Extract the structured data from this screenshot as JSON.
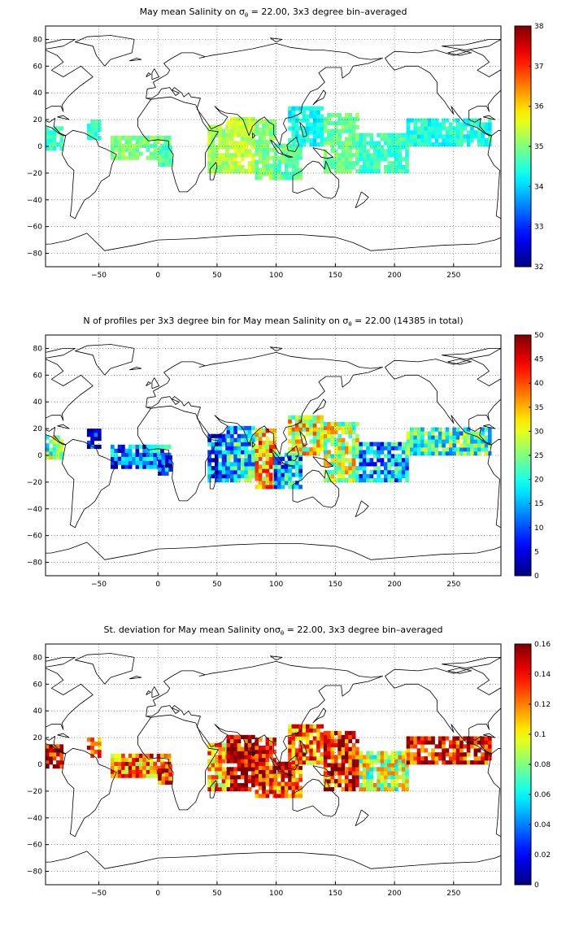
{
  "chart_data": [
    {
      "type": "heatmap",
      "title_pre": "May mean Salinity on ",
      "title_sym": "σ",
      "title_sub": "θ",
      "title_post": " = 22.00, 3x3 degree bin–averaged",
      "xticks": [
        -50,
        0,
        50,
        100,
        150,
        200,
        250
      ],
      "yticks": [
        80,
        60,
        40,
        20,
        0,
        -20,
        -40,
        -60,
        -80
      ],
      "xlim": [
        -95,
        290
      ],
      "ylim": [
        -90,
        90
      ],
      "colorbar": {
        "min": 32,
        "max": 38,
        "ticks": [
          38,
          37,
          36,
          35,
          34,
          33,
          32
        ]
      },
      "regions": [
        {
          "lon": [
            -95,
            -80
          ],
          "lat": [
            -3,
            15
          ],
          "value": 34.6
        },
        {
          "lon": [
            -60,
            -48
          ],
          "lat": [
            5,
            20
          ],
          "value": 34.5
        },
        {
          "lon": [
            -40,
            10
          ],
          "lat": [
            -10,
            8
          ],
          "value": 35.0
        },
        {
          "lon": [
            0,
            12
          ],
          "lat": [
            -15,
            0
          ],
          "value": 34.7
        },
        {
          "lon": [
            42,
            60
          ],
          "lat": [
            -20,
            15
          ],
          "value": 35.2
        },
        {
          "lon": [
            58,
            82
          ],
          "lat": [
            -20,
            22
          ],
          "value": 35.4
        },
        {
          "lon": [
            82,
            98
          ],
          "lat": [
            -25,
            20
          ],
          "value": 35.0
        },
        {
          "lon": [
            98,
            120
          ],
          "lat": [
            -25,
            0
          ],
          "value": 34.8
        },
        {
          "lon": [
            110,
            140
          ],
          "lat": [
            0,
            30
          ],
          "value": 34.3
        },
        {
          "lon": [
            140,
            170
          ],
          "lat": [
            -20,
            25
          ],
          "value": 34.9
        },
        {
          "lon": [
            170,
            210
          ],
          "lat": [
            -20,
            10
          ],
          "value": 34.6
        },
        {
          "lon": [
            210,
            280
          ],
          "lat": [
            0,
            20
          ],
          "value": 34.4
        }
      ]
    },
    {
      "type": "heatmap",
      "title_pre": "N of profiles per 3x3 degree bin for May mean Salinity on ",
      "title_sym": "σ",
      "title_sub": "θ",
      "title_post": " = 22.00 (14385 in total)",
      "xticks": [
        -50,
        0,
        50,
        100,
        150,
        200,
        250
      ],
      "yticks": [
        80,
        60,
        40,
        20,
        0,
        -20,
        -40,
        -60,
        -80
      ],
      "xlim": [
        -95,
        290
      ],
      "ylim": [
        -90,
        90
      ],
      "colorbar": {
        "min": 0,
        "max": 50,
        "ticks": [
          50,
          45,
          40,
          35,
          30,
          25,
          20,
          15,
          10,
          5,
          0
        ]
      },
      "regions": [
        {
          "lon": [
            -95,
            -80
          ],
          "lat": [
            -3,
            15
          ],
          "value": 25
        },
        {
          "lon": [
            -60,
            -48
          ],
          "lat": [
            5,
            20
          ],
          "value": 5
        },
        {
          "lon": [
            -40,
            10
          ],
          "lat": [
            -10,
            8
          ],
          "value": 12
        },
        {
          "lon": [
            0,
            12
          ],
          "lat": [
            -15,
            0
          ],
          "value": 8
        },
        {
          "lon": [
            42,
            60
          ],
          "lat": [
            -20,
            15
          ],
          "value": 10
        },
        {
          "lon": [
            58,
            82
          ],
          "lat": [
            -20,
            22
          ],
          "value": 18
        },
        {
          "lon": [
            82,
            98
          ],
          "lat": [
            -25,
            20
          ],
          "value": 35
        },
        {
          "lon": [
            98,
            120
          ],
          "lat": [
            -25,
            0
          ],
          "value": 15
        },
        {
          "lon": [
            110,
            140
          ],
          "lat": [
            0,
            30
          ],
          "value": 30
        },
        {
          "lon": [
            140,
            170
          ],
          "lat": [
            -20,
            25
          ],
          "value": 28
        },
        {
          "lon": [
            170,
            210
          ],
          "lat": [
            -20,
            10
          ],
          "value": 15
        },
        {
          "lon": [
            210,
            280
          ],
          "lat": [
            0,
            20
          ],
          "value": 22
        }
      ]
    },
    {
      "type": "heatmap",
      "title_pre": "St. deviation for May mean Salinity on",
      "title_sym": "σ",
      "title_sub": "θ",
      "title_post": " = 22.00, 3x3 degree bin–averaged",
      "xticks": [
        -50,
        0,
        50,
        100,
        150,
        200,
        250
      ],
      "yticks": [
        80,
        60,
        40,
        20,
        0,
        -20,
        -40,
        -60,
        -80
      ],
      "xlim": [
        -95,
        290
      ],
      "ylim": [
        -90,
        90
      ],
      "colorbar": {
        "min": 0,
        "max": 0.16,
        "ticks": [
          0.16,
          0.14,
          0.12,
          0.1,
          0.08,
          0.06,
          0.04,
          0.02,
          0
        ]
      },
      "regions": [
        {
          "lon": [
            -95,
            -80
          ],
          "lat": [
            -3,
            15
          ],
          "value": 0.15
        },
        {
          "lon": [
            -60,
            -48
          ],
          "lat": [
            5,
            20
          ],
          "value": 0.13
        },
        {
          "lon": [
            -40,
            10
          ],
          "lat": [
            -10,
            8
          ],
          "value": 0.12
        },
        {
          "lon": [
            0,
            12
          ],
          "lat": [
            -15,
            0
          ],
          "value": 0.14
        },
        {
          "lon": [
            42,
            60
          ],
          "lat": [
            -20,
            15
          ],
          "value": 0.11
        },
        {
          "lon": [
            58,
            82
          ],
          "lat": [
            -20,
            22
          ],
          "value": 0.15
        },
        {
          "lon": [
            82,
            98
          ],
          "lat": [
            -25,
            20
          ],
          "value": 0.14
        },
        {
          "lon": [
            98,
            120
          ],
          "lat": [
            -25,
            0
          ],
          "value": 0.13
        },
        {
          "lon": [
            110,
            140
          ],
          "lat": [
            0,
            30
          ],
          "value": 0.12
        },
        {
          "lon": [
            140,
            170
          ],
          "lat": [
            -20,
            25
          ],
          "value": 0.14
        },
        {
          "lon": [
            170,
            210
          ],
          "lat": [
            -20,
            10
          ],
          "value": 0.09
        },
        {
          "lon": [
            210,
            280
          ],
          "lat": [
            0,
            20
          ],
          "value": 0.14
        }
      ]
    }
  ]
}
